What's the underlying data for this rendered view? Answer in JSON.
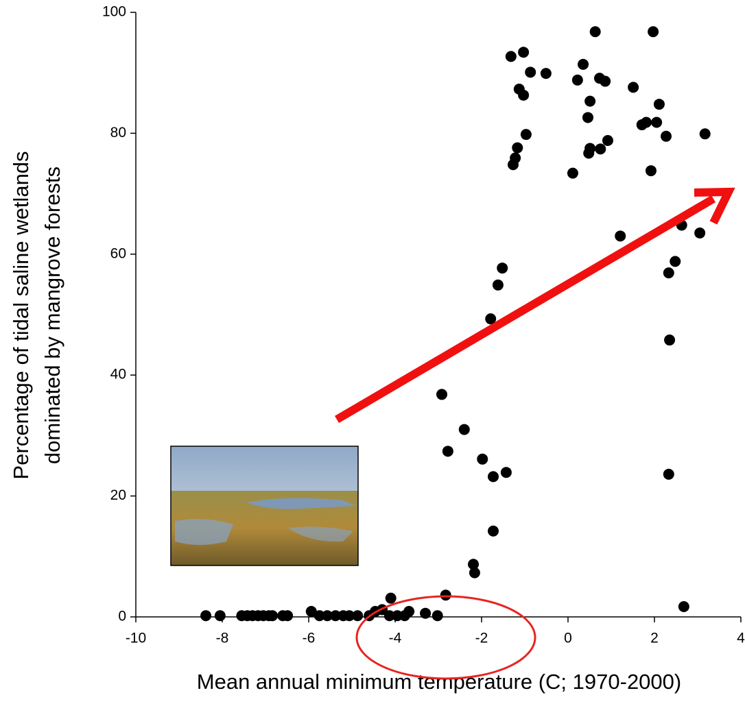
{
  "chart_data": {
    "type": "scatter",
    "x_label": "Mean annual minimum temperature (C; 1970-2000)",
    "y_label": [
      "Percentage of tidal saline wetlands",
      "dominated by mangrove forests"
    ],
    "color": "#000000",
    "x": [
      -8.38,
      -8.05,
      -7.55,
      -7.42,
      -7.3,
      -7.17,
      -7.05,
      -6.92,
      -6.84,
      -6.6,
      -6.49,
      -5.94,
      -5.75,
      -5.57,
      -5.38,
      -5.2,
      -5.06,
      -4.87,
      -4.6,
      -4.46,
      -4.3,
      -4.1,
      -4.13,
      -3.95,
      -3.78,
      -3.68,
      -3.3,
      -3.02,
      -2.83,
      -2.92,
      -2.78,
      -2.4,
      -1.98,
      -1.73,
      -1.73,
      -2.19,
      -2.16,
      -1.43,
      -1.79,
      -1.62,
      -1.52,
      -1.32,
      -1.03,
      -1.13,
      -1.03,
      -0.87,
      -0.51,
      -0.97,
      -1.17,
      -1.22,
      -1.27,
      0.11,
      0.22,
      0.35,
      0.63,
      0.51,
      0.46,
      0.51,
      0.48,
      0.75,
      0.73,
      0.86,
      0.92,
      1.21,
      1.51,
      1.71,
      1.81,
      2.05,
      1.97,
      1.92,
      2.11,
      2.27,
      2.33,
      2.48,
      2.35,
      2.33,
      2.63,
      2.68,
      3.05,
      3.17
    ],
    "y": [
      0.2,
      0.2,
      0.2,
      0.2,
      0.2,
      0.2,
      0.2,
      0.2,
      0.2,
      0.2,
      0.2,
      0.9,
      0.2,
      0.2,
      0.2,
      0.2,
      0.2,
      0.2,
      0.2,
      0.9,
      1.2,
      3.1,
      0.2,
      0.2,
      0.2,
      0.9,
      0.6,
      0.2,
      3.6,
      36.8,
      27.4,
      31,
      26.1,
      23.2,
      14.2,
      8.7,
      7.3,
      23.9,
      49.3,
      54.9,
      57.7,
      92.7,
      93.4,
      87.3,
      86.3,
      90.1,
      89.9,
      79.8,
      77.6,
      75.9,
      74.8,
      73.4,
      88.8,
      91.4,
      96.8,
      85.3,
      82.6,
      77.5,
      76.7,
      77.4,
      89.1,
      88.6,
      78.8,
      63,
      87.6,
      81.4,
      81.8,
      81.8,
      96.8,
      73.8,
      84.8,
      79.5,
      56.9,
      58.8,
      45.8,
      23.6,
      64.8,
      1.7,
      63.5,
      79.9
    ],
    "xlim": [
      -10,
      4
    ],
    "xticks": [
      -10,
      -8,
      -6,
      -4,
      -2,
      0,
      2,
      4
    ],
    "ylim": [
      0,
      100
    ],
    "yticks": [
      0,
      20,
      40,
      60,
      80,
      100
    ]
  }
}
